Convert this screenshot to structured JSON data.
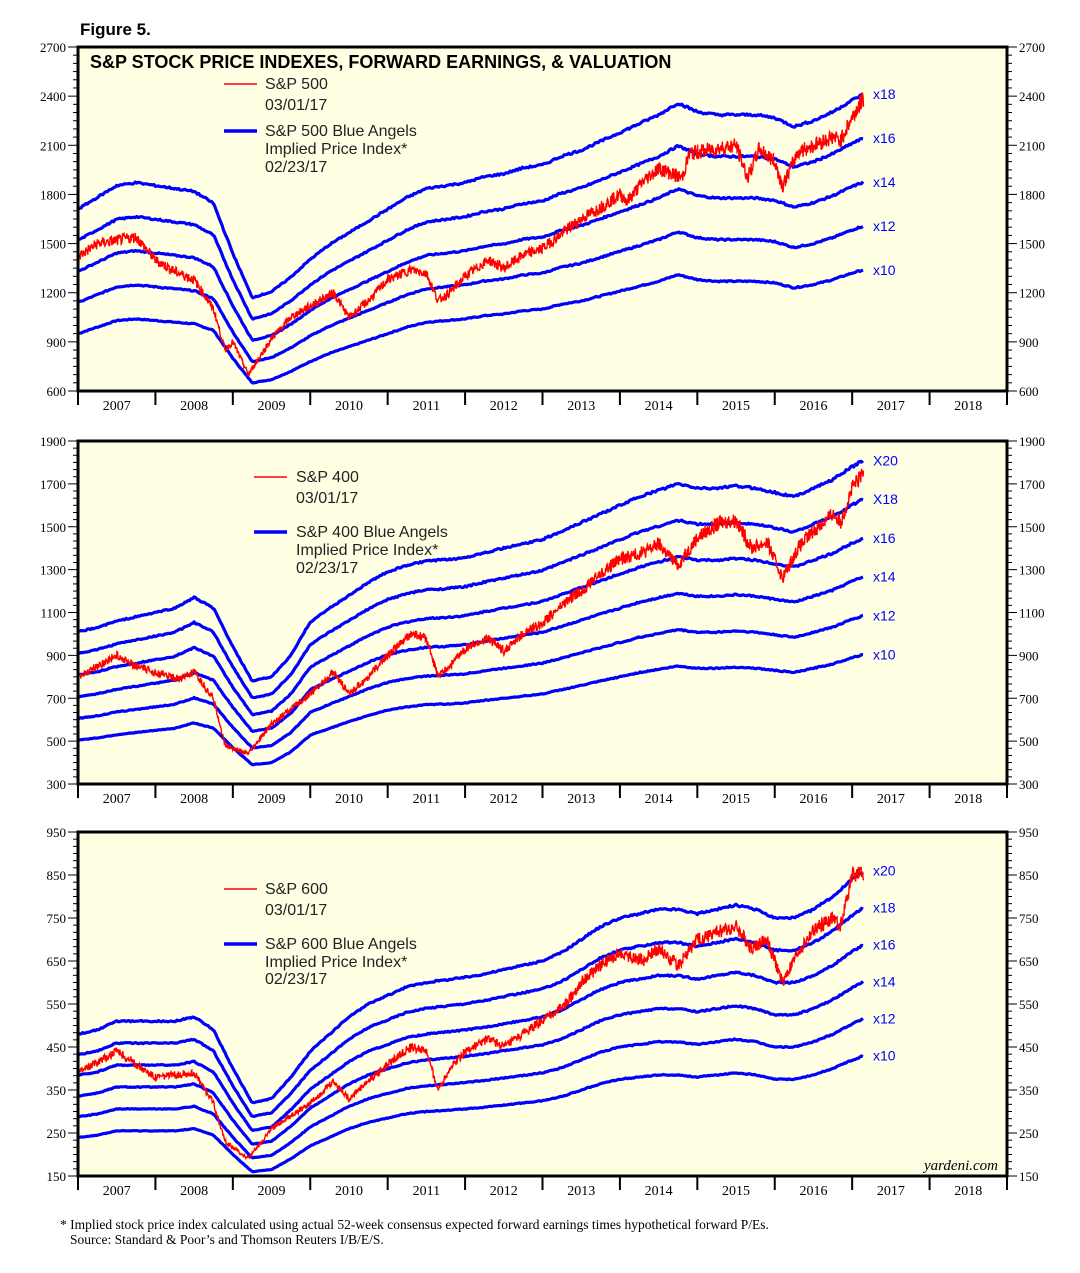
{
  "figure_label": "Figure 5.",
  "watermark": "yardeni.com",
  "footnote": {
    "line1": "* Implied stock price index calculated using actual 52-week consensus expected forward earnings times hypothetical forward P/Es.",
    "line2": "Source: Standard & Poor’s and Thomson Reuters I/B/E/S."
  },
  "colors": {
    "price": "#ff0000",
    "bands": "#0000ff",
    "plot_bg": "#ffffe4",
    "frame": "#000000"
  },
  "chart_data": [
    {
      "type": "line",
      "title": "S&P STOCK PRICE INDEXES, FORWARD EARNINGS, & VALUATION",
      "legend": {
        "price_name": "S&P 500",
        "price_date": "03/01/17",
        "band_name": "S&P 500 Blue Angels",
        "band_name2": "Implied Price Index*",
        "band_date": "02/23/17"
      },
      "ylim": [
        600,
        2700
      ],
      "yticks": [
        600,
        900,
        1200,
        1500,
        1800,
        2100,
        2400,
        2700
      ],
      "xlim": [
        2007,
        2019
      ],
      "xticks": [
        "2007",
        "2008",
        "2009",
        "2010",
        "2011",
        "2012",
        "2013",
        "2014",
        "2015",
        "2016",
        "2017",
        "2018"
      ],
      "multiples": [
        10,
        12,
        14,
        16,
        18
      ],
      "multiple_labels": [
        "x10",
        "x12",
        "x14",
        "x16",
        "x18"
      ],
      "dates": [
        2007.0,
        2007.25,
        2007.5,
        2007.75,
        2008.0,
        2008.25,
        2008.5,
        2008.75,
        2009.0,
        2009.25,
        2009.5,
        2009.75,
        2010.0,
        2010.25,
        2010.5,
        2010.75,
        2011.0,
        2011.25,
        2011.5,
        2011.75,
        2012.0,
        2012.25,
        2012.5,
        2012.75,
        2013.0,
        2013.25,
        2013.5,
        2013.75,
        2014.0,
        2014.25,
        2014.5,
        2014.75,
        2015.0,
        2015.25,
        2015.5,
        2015.75,
        2016.0,
        2016.25,
        2016.5,
        2016.75,
        2017.0,
        2017.15
      ],
      "forward_earnings": [
        95,
        99,
        103,
        104,
        103,
        102,
        101,
        97,
        80,
        65,
        67,
        72,
        78,
        83,
        87,
        91,
        95,
        99,
        102,
        103,
        104,
        106,
        107,
        109,
        110,
        113,
        115,
        118,
        121,
        124,
        127,
        131,
        128,
        127,
        127,
        127,
        126,
        123,
        125,
        128,
        132,
        134
      ],
      "price_dates": [
        2007.0,
        2007.25,
        2007.5,
        2007.75,
        2008.0,
        2008.25,
        2008.5,
        2008.75,
        2008.9,
        2009.0,
        2009.2,
        2009.5,
        2009.75,
        2010.0,
        2010.3,
        2010.5,
        2010.75,
        2011.0,
        2011.3,
        2011.5,
        2011.65,
        2011.8,
        2012.0,
        2012.3,
        2012.5,
        2012.75,
        2013.0,
        2013.3,
        2013.5,
        2013.75,
        2014.0,
        2014.1,
        2014.3,
        2014.5,
        2014.8,
        2014.9,
        2015.25,
        2015.5,
        2015.65,
        2015.8,
        2016.0,
        2016.1,
        2016.3,
        2016.5,
        2016.75,
        2016.85,
        2017.0,
        2017.15
      ],
      "price": [
        1420,
        1500,
        1520,
        1540,
        1400,
        1330,
        1280,
        1100,
        850,
        900,
        700,
        920,
        1050,
        1120,
        1200,
        1050,
        1150,
        1280,
        1340,
        1320,
        1150,
        1200,
        1300,
        1400,
        1350,
        1430,
        1470,
        1580,
        1650,
        1720,
        1800,
        1760,
        1880,
        1960,
        1900,
        2050,
        2080,
        2100,
        1900,
        2080,
        2000,
        1850,
        2060,
        2100,
        2150,
        2130,
        2270,
        2390
      ]
    },
    {
      "type": "line",
      "legend": {
        "price_name": "S&P 400",
        "price_date": "03/01/17",
        "band_name": "S&P 400 Blue Angels",
        "band_name2": "Implied Price Index*",
        "band_date": "02/23/17"
      },
      "ylim": [
        300,
        1900
      ],
      "yticks": [
        300,
        500,
        700,
        900,
        1100,
        1300,
        1500,
        1700,
        1900
      ],
      "xlim": [
        2007,
        2019
      ],
      "xticks": [
        "2007",
        "2008",
        "2009",
        "2010",
        "2011",
        "2012",
        "2013",
        "2014",
        "2015",
        "2016",
        "2017",
        "2018"
      ],
      "multiples": [
        10,
        12,
        14,
        16,
        18,
        20
      ],
      "multiple_labels": [
        "x10",
        "x12",
        "x14",
        "x16",
        "X18",
        "X20"
      ],
      "dates": [
        2007.0,
        2007.25,
        2007.5,
        2007.75,
        2008.0,
        2008.25,
        2008.5,
        2008.75,
        2009.0,
        2009.25,
        2009.5,
        2009.75,
        2010.0,
        2010.25,
        2010.5,
        2010.75,
        2011.0,
        2011.25,
        2011.5,
        2011.75,
        2012.0,
        2012.25,
        2012.5,
        2012.75,
        2013.0,
        2013.25,
        2013.5,
        2013.75,
        2014.0,
        2014.25,
        2014.5,
        2014.75,
        2015.0,
        2015.25,
        2015.5,
        2015.75,
        2016.0,
        2016.25,
        2016.5,
        2016.75,
        2017.0,
        2017.15
      ],
      "forward_earnings": [
        50.5,
        51.5,
        53,
        54,
        55,
        56,
        58.5,
        56,
        47,
        39,
        40,
        45,
        52.8,
        56,
        59,
        62,
        64.5,
        66,
        67,
        67.3,
        67.8,
        69,
        70,
        71,
        72,
        74,
        76,
        78,
        80,
        82,
        83.5,
        85,
        84,
        84,
        84.5,
        84,
        83,
        82,
        84,
        86,
        89,
        90.5
      ],
      "price_dates": [
        2007.0,
        2007.5,
        2007.75,
        2008.0,
        2008.3,
        2008.5,
        2008.75,
        2008.9,
        2009.2,
        2009.5,
        2010.0,
        2010.3,
        2010.5,
        2010.75,
        2011.0,
        2011.3,
        2011.5,
        2011.65,
        2011.8,
        2012.0,
        2012.3,
        2012.5,
        2012.75,
        2013.0,
        2013.3,
        2013.5,
        2013.75,
        2014.0,
        2014.3,
        2014.5,
        2014.75,
        2015.0,
        2015.3,
        2015.5,
        2015.7,
        2015.9,
        2016.1,
        2016.3,
        2016.5,
        2016.75,
        2016.85,
        2017.0,
        2017.15
      ],
      "price": [
        800,
        900,
        850,
        820,
        790,
        820,
        700,
        480,
        440,
        580,
        720,
        820,
        720,
        800,
        900,
        1000,
        980,
        800,
        850,
        930,
        980,
        920,
        1000,
        1050,
        1150,
        1200,
        1280,
        1350,
        1380,
        1420,
        1320,
        1450,
        1520,
        1530,
        1400,
        1430,
        1260,
        1400,
        1480,
        1560,
        1520,
        1680,
        1750
      ]
    },
    {
      "type": "line",
      "legend": {
        "price_name": "S&P 600",
        "price_date": "03/01/17",
        "band_name": "S&P 600 Blue Angels",
        "band_name2": "Implied Price Index*",
        "band_date": "02/23/17"
      },
      "ylim": [
        150,
        950
      ],
      "yticks": [
        150,
        250,
        350,
        450,
        550,
        650,
        750,
        850,
        950
      ],
      "xlim": [
        2007,
        2019
      ],
      "xticks": [
        "2007",
        "2008",
        "2009",
        "2010",
        "2011",
        "2012",
        "2013",
        "2014",
        "2015",
        "2016",
        "2017",
        "2018"
      ],
      "multiples": [
        10,
        12,
        14,
        16,
        18,
        20
      ],
      "multiple_labels": [
        "x10",
        "x12",
        "x14",
        "x16",
        "x18",
        "x20"
      ],
      "dates": [
        2007.0,
        2007.25,
        2007.5,
        2007.75,
        2008.0,
        2008.25,
        2008.5,
        2008.75,
        2009.0,
        2009.25,
        2009.5,
        2009.75,
        2010.0,
        2010.25,
        2010.5,
        2010.75,
        2011.0,
        2011.25,
        2011.5,
        2011.75,
        2012.0,
        2012.25,
        2012.5,
        2012.75,
        2013.0,
        2013.25,
        2013.5,
        2013.75,
        2014.0,
        2014.25,
        2014.5,
        2014.75,
        2015.0,
        2015.25,
        2015.5,
        2015.75,
        2016.0,
        2016.25,
        2016.5,
        2016.75,
        2017.0,
        2017.15
      ],
      "forward_earnings": [
        24,
        24.5,
        25.5,
        25.5,
        25.5,
        25.5,
        26,
        24.5,
        20,
        16,
        16.5,
        19,
        22,
        24,
        26,
        27.5,
        28.5,
        29.5,
        30,
        30.3,
        30.6,
        31,
        31.5,
        32,
        32.5,
        33.5,
        35,
        36.5,
        37.5,
        38,
        38.5,
        38.5,
        38,
        38.5,
        39,
        38.5,
        37.5,
        37.5,
        38.5,
        40,
        42,
        43
      ],
      "price_dates": [
        2007.0,
        2007.5,
        2008.0,
        2008.5,
        2008.75,
        2008.9,
        2009.2,
        2009.5,
        2010.0,
        2010.3,
        2010.5,
        2010.75,
        2011.0,
        2011.3,
        2011.5,
        2011.65,
        2011.8,
        2012.0,
        2012.3,
        2012.5,
        2012.75,
        2013.0,
        2013.3,
        2013.5,
        2013.75,
        2014.0,
        2014.3,
        2014.5,
        2014.75,
        2015.0,
        2015.3,
        2015.5,
        2015.7,
        2015.9,
        2016.1,
        2016.3,
        2016.5,
        2016.75,
        2016.85,
        2017.0,
        2017.15
      ],
      "price": [
        390,
        440,
        380,
        390,
        320,
        230,
        190,
        260,
        320,
        370,
        330,
        370,
        410,
        450,
        440,
        350,
        400,
        440,
        470,
        450,
        480,
        510,
        550,
        600,
        640,
        670,
        650,
        680,
        640,
        700,
        720,
        730,
        680,
        700,
        600,
        670,
        720,
        750,
        730,
        850,
        850
      ]
    }
  ]
}
